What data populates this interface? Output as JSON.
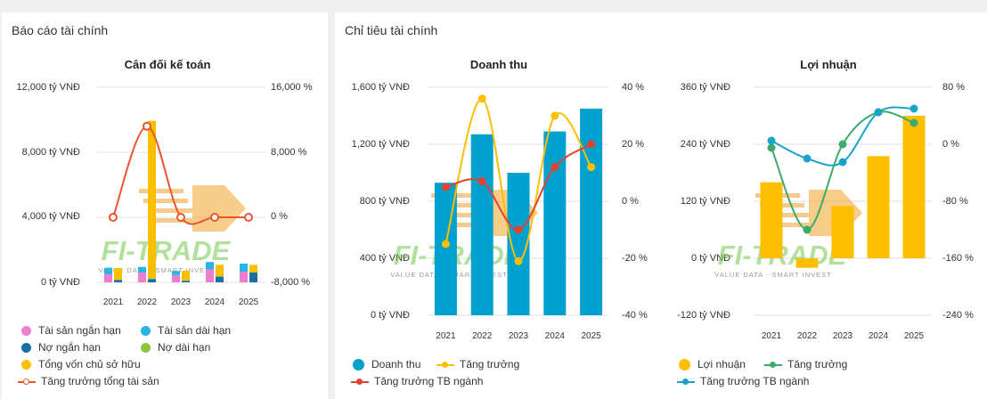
{
  "left_panel": {
    "title": "Báo cáo tài chính",
    "chart": {
      "title": "Cân đối kế toán",
      "left_ticks": [
        "12,000 tỷ VNĐ",
        "8,000 tỷ VNĐ",
        "4,000 tỷ VNĐ",
        "0 tỷ VNĐ"
      ],
      "right_ticks": [
        "16,000 %",
        "8,000 %",
        "0 %",
        "-8,000 %"
      ],
      "legend": [
        {
          "label": "Tài sản ngắn hạn",
          "color": "#f07ccf",
          "kind": "dot"
        },
        {
          "label": "Tài sản dài hạn",
          "color": "#26b5e5",
          "kind": "dot"
        },
        {
          "label": "Nợ ngắn hạn",
          "color": "#1c6fa5",
          "kind": "dot"
        },
        {
          "label": "Nợ dài hạn",
          "color": "#8cc63f",
          "kind": "dot"
        },
        {
          "label": "Tổng vốn chủ sở hữu",
          "color": "#fbbf00",
          "kind": "dot"
        },
        {
          "label": "Tăng trưởng tổng tài sản",
          "color": "#e8572c",
          "kind": "line-hollow"
        }
      ]
    }
  },
  "right_panel": {
    "title": "Chỉ tiêu tài chính",
    "revenue_chart": {
      "title": "Doanh thu",
      "left_ticks": [
        "1,600 tỷ VNĐ",
        "1,200 tỷ VNĐ",
        "800 tỷ VNĐ",
        "400 tỷ VNĐ",
        "0 tỷ VNĐ"
      ],
      "right_ticks": [
        "40 %",
        "20 %",
        "0 %",
        "-20 %",
        "-40 %"
      ],
      "legend": [
        {
          "label": "Doanh thu",
          "color": "#00a1cf",
          "kind": "dot"
        },
        {
          "label": "Tăng trưởng",
          "color": "#fbbf00",
          "kind": "line"
        },
        {
          "label": "Tăng trưởng TB ngành",
          "color": "#e04430",
          "kind": "line"
        }
      ]
    },
    "profit_chart": {
      "title": "Lợi nhuận",
      "left_ticks": [
        "360 tỷ VNĐ",
        "240 tỷ VNĐ",
        "120 tỷ VNĐ",
        "0 tỷ VNĐ",
        "-120 tỷ VNĐ"
      ],
      "right_ticks": [
        "80 %",
        "0 %",
        "-80 %",
        "-160 %",
        "-240 %"
      ],
      "legend": [
        {
          "label": "Lợi nhuận",
          "color": "#fbbf00",
          "kind": "dot"
        },
        {
          "label": "Tăng trưởng",
          "color": "#3daa6a",
          "kind": "line"
        },
        {
          "label": "Tăng trưởng TB ngành",
          "color": "#1aa3c9",
          "kind": "line"
        }
      ]
    }
  },
  "watermark": {
    "brand": "FI-TRADE",
    "tagline": "VALUE DATA - SMART INVEST"
  },
  "chart_data": [
    {
      "type": "bar",
      "title": "Cân đối kế toán",
      "categories": [
        "2021",
        "2022",
        "2023",
        "2024",
        "2025"
      ],
      "ylim": [
        0,
        12000
      ],
      "y2lim": [
        -8000,
        16000
      ],
      "series": [
        {
          "name": "Tài sản ngắn hạn",
          "color": "#f07ccf",
          "stack": "assets",
          "values": [
            500,
            600,
            450,
            800,
            650
          ]
        },
        {
          "name": "Tài sản dài hạn",
          "color": "#26b5e5",
          "stack": "assets",
          "values": [
            400,
            350,
            250,
            450,
            500
          ]
        },
        {
          "name": "Nợ ngắn hạn",
          "color": "#1c6fa5",
          "stack": "capital",
          "values": [
            150,
            200,
            100,
            350,
            600
          ]
        },
        {
          "name": "Nợ dài hạn",
          "color": "#8cc63f",
          "stack": "capital",
          "values": [
            30,
            40,
            20,
            30,
            30
          ]
        },
        {
          "name": "Tổng vốn chủ sở hữu",
          "color": "#fbbf00",
          "stack": "capital",
          "values": [
            700,
            9700,
            600,
            700,
            450
          ]
        },
        {
          "name": "Tăng trưởng tổng tài sản",
          "color": "#e8572c",
          "type": "line",
          "axis": "right",
          "values": [
            0,
            11200,
            0,
            0,
            0
          ]
        }
      ]
    },
    {
      "type": "bar",
      "title": "Doanh thu",
      "categories": [
        "2021",
        "2022",
        "2023",
        "2024",
        "2025"
      ],
      "ylim": [
        0,
        1600
      ],
      "y2lim": [
        -40,
        40
      ],
      "series": [
        {
          "name": "Doanh thu",
          "color": "#00a1cf",
          "values": [
            930,
            1270,
            1000,
            1290,
            1450
          ]
        },
        {
          "name": "Tăng trưởng",
          "color": "#fbbf00",
          "type": "line",
          "axis": "right",
          "values": [
            -15,
            36,
            -21,
            30,
            12
          ]
        },
        {
          "name": "Tăng trưởng TB ngành",
          "color": "#e04430",
          "type": "line",
          "axis": "right",
          "values": [
            5,
            7,
            -10,
            12,
            20
          ]
        }
      ]
    },
    {
      "type": "bar",
      "title": "Lợi nhuận",
      "categories": [
        "2021",
        "2022",
        "2023",
        "2024",
        "2025"
      ],
      "ylim": [
        -120,
        360
      ],
      "y2lim": [
        -240,
        80
      ],
      "series": [
        {
          "name": "Lợi nhuận",
          "color": "#fbbf00",
          "values": [
            160,
            -20,
            110,
            215,
            300
          ]
        },
        {
          "name": "Tăng trưởng",
          "color": "#3daa6a",
          "type": "line",
          "axis": "right",
          "values": [
            -5,
            -120,
            0,
            45,
            30
          ]
        },
        {
          "name": "Tăng trưởng TB ngành",
          "color": "#1aa3c9",
          "type": "line",
          "axis": "right",
          "values": [
            5,
            -20,
            -25,
            45,
            50
          ]
        }
      ]
    }
  ]
}
